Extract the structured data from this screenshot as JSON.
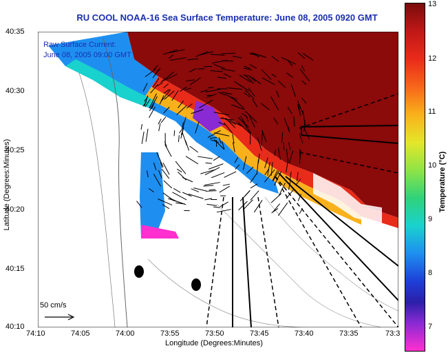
{
  "title": "RU COOL  NOAA-16  Sea Surface Temperature:  June 08, 2005 0920 GMT",
  "legend": {
    "line1": "Raw Surface Current:",
    "line2": "June 08, 2005 09:00 GMT"
  },
  "scale_label": "50 cm/s",
  "axes": {
    "xlabel": "Longitude (Degrees:Minutes)",
    "ylabel": "Latitude (Degrees:Minutes)",
    "xticks": [
      "74:10",
      "74:05",
      "74:00",
      "73:55",
      "73:50",
      "73:45",
      "73:40",
      "73:35",
      "73:3"
    ],
    "yticks": [
      "40:35",
      "40:30",
      "40:25",
      "40:20",
      "40:15",
      "40:10"
    ]
  },
  "colorbar": {
    "label": "Temperature (°C)",
    "ticks": [
      "13",
      "12",
      "11",
      "10",
      "9",
      "8",
      "7"
    ],
    "range": [
      6.5,
      13
    ]
  },
  "colors": {
    "title": "#1a2fb0",
    "land": "#ffffff",
    "warm": "#8b0a0a",
    "cold": "#1e8ff0"
  }
}
